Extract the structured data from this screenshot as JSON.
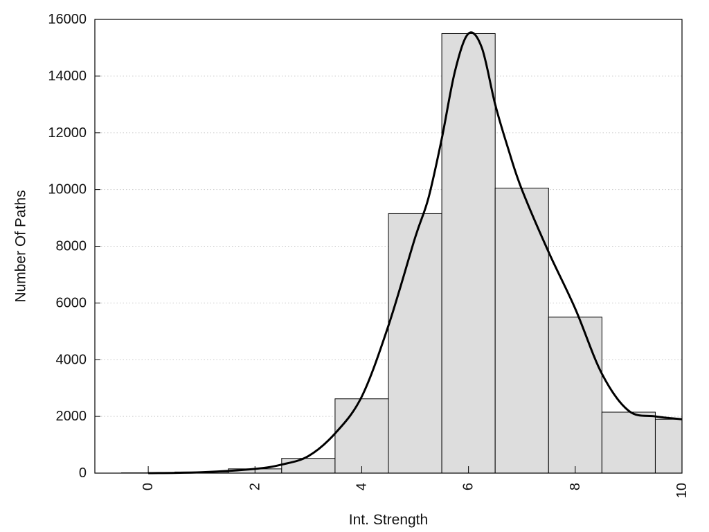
{
  "chart_data": {
    "type": "bar",
    "subtype": "histogram-with-density-line",
    "title": "",
    "xlabel": "Int. Strength",
    "ylabel": "Number Of Paths",
    "xlim": [
      -1,
      10
    ],
    "ylim": [
      0,
      16000
    ],
    "x_ticks": [
      0,
      2,
      4,
      6,
      8,
      10
    ],
    "y_ticks": [
      0,
      2000,
      4000,
      6000,
      8000,
      10000,
      12000,
      14000,
      16000
    ],
    "grid": {
      "horizontal": true,
      "style": "dotted"
    },
    "legend": "none",
    "bar_color": "#dddddd",
    "line_color": "#000000",
    "bins": [
      {
        "x0": -0.5,
        "x1": 0.5,
        "value": 10
      },
      {
        "x0": 0.5,
        "x1": 1.5,
        "value": 40
      },
      {
        "x0": 1.5,
        "x1": 2.5,
        "value": 150
      },
      {
        "x0": 2.5,
        "x1": 3.5,
        "value": 520
      },
      {
        "x0": 3.5,
        "x1": 4.5,
        "value": 2620
      },
      {
        "x0": 4.5,
        "x1": 5.5,
        "value": 9150
      },
      {
        "x0": 5.5,
        "x1": 6.5,
        "value": 15500
      },
      {
        "x0": 6.5,
        "x1": 7.5,
        "value": 10050
      },
      {
        "x0": 7.5,
        "x1": 8.5,
        "value": 5500
      },
      {
        "x0": 8.5,
        "x1": 9.5,
        "value": 2150
      },
      {
        "x0": 9.5,
        "x1": 10,
        "value": 1900
      }
    ],
    "density_line": {
      "x": [
        0,
        1,
        2,
        2.5,
        3,
        3.5,
        4,
        4.5,
        5,
        5.25,
        5.5,
        5.75,
        6,
        6.25,
        6.5,
        6.75,
        7,
        7.5,
        8,
        8.5,
        9,
        9.5,
        10
      ],
      "y": [
        0,
        30,
        150,
        300,
        600,
        1400,
        2700,
        5200,
        8300,
        9700,
        11800,
        14200,
        15500,
        15000,
        13000,
        11400,
        10000,
        7800,
        5800,
        3500,
        2200,
        2000,
        1900
      ]
    }
  }
}
